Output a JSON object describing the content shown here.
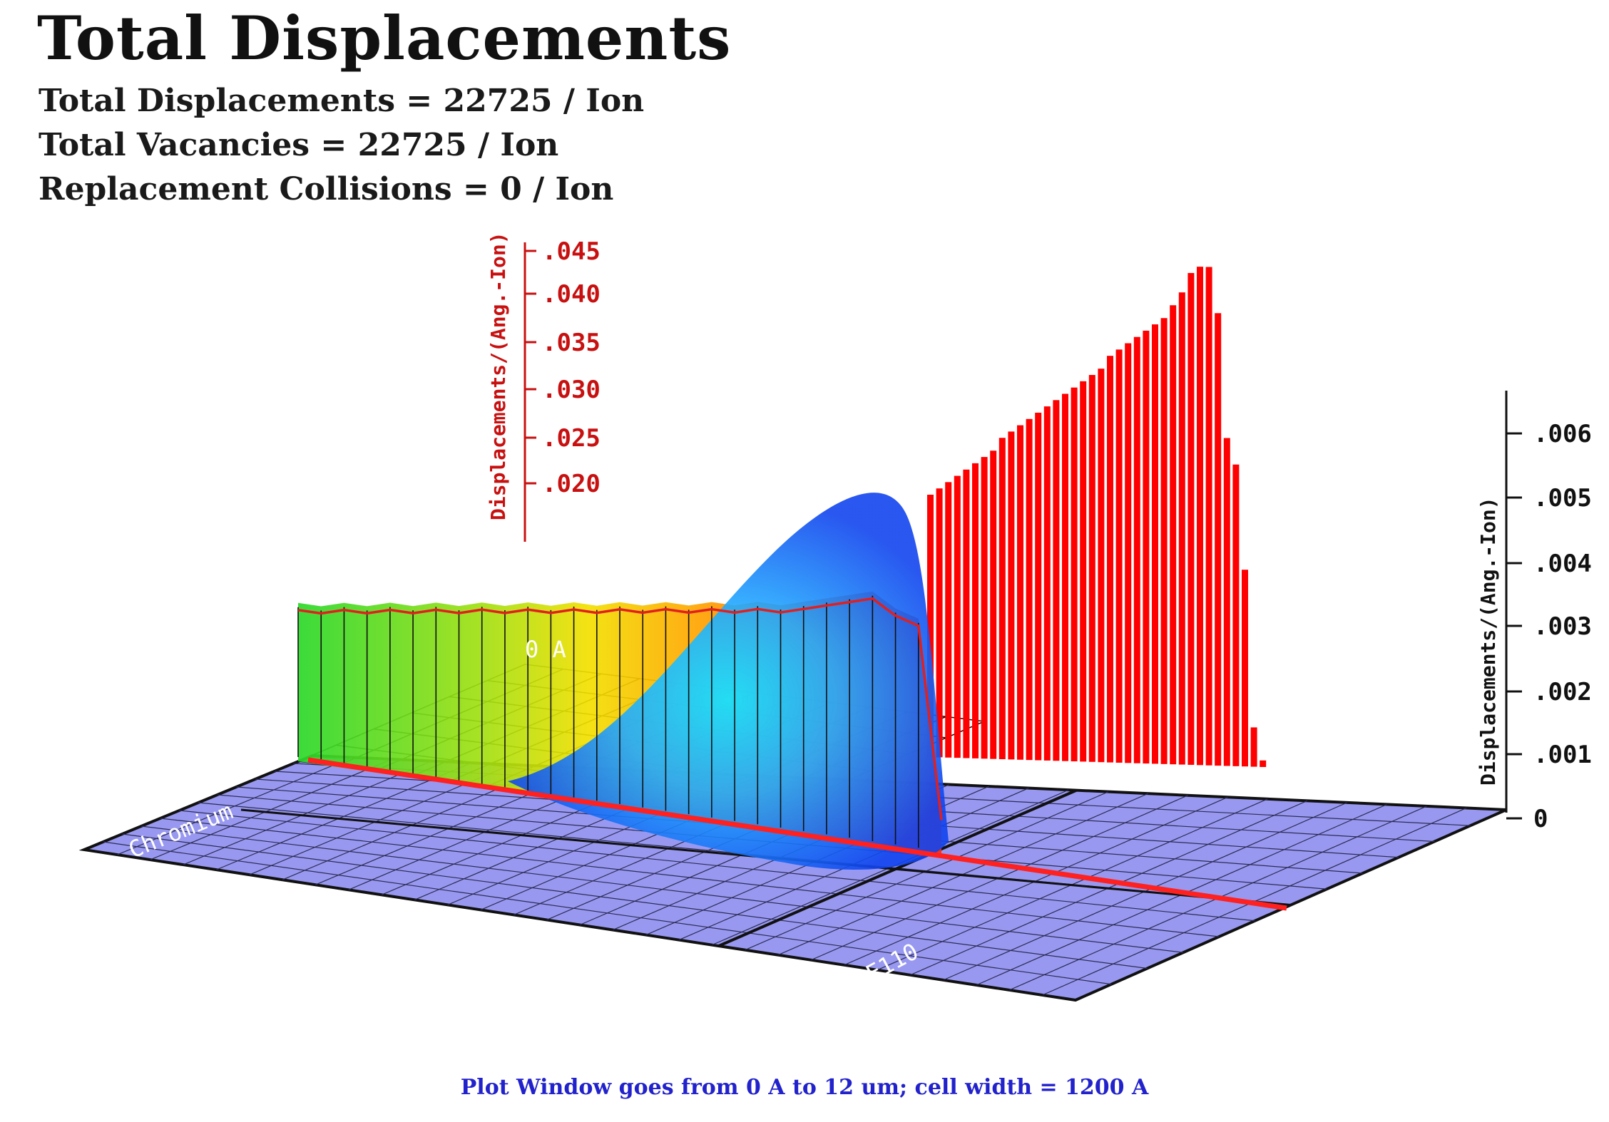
{
  "title": "Total Displacements",
  "stats": [
    "Total Displacements = 22725 / Ion",
    "Total Vacancies = 22725 / Ion",
    "Replacement Collisions = 0 / Ion"
  ],
  "footer": "Plot Window goes from 0 A to 12 um;  cell width = 1200 A",
  "colors": {
    "floor": "#9898f0",
    "total_bars": "#ff0000",
    "left_axis": "#c81010",
    "right_axis": "#111111",
    "footer_text": "#2222cc",
    "profile_outline": "#e02020"
  },
  "chart_data": {
    "type": "area",
    "labels": {
      "left_axis": "Displacements/(Ang.-Ion)",
      "right_axis": "Displacements/(Ang.-Ion)",
      "origin": "0 A",
      "layer_1": "Chromium",
      "layer_2": "E110"
    },
    "left_axis_ticks": [
      ".045",
      ".040",
      ".035",
      ".030",
      ".025",
      ".020"
    ],
    "right_axis_ticks": [
      "0",
      ".001",
      ".002",
      ".003",
      ".004",
      ".005",
      ".006"
    ],
    "left_ylim": [
      0,
      0.045
    ],
    "right_ylim": [
      0,
      0.006
    ],
    "total_displacement_bars": [
      0.004,
      0.0041,
      0.0042,
      0.0043,
      0.0044,
      0.0045,
      0.0046,
      0.0047,
      0.0049,
      0.005,
      0.0051,
      0.0052,
      0.0053,
      0.0054,
      0.0055,
      0.0056,
      0.0057,
      0.0058,
      0.0059,
      0.006,
      0.0062,
      0.0063,
      0.0064,
      0.0065,
      0.0066,
      0.0067,
      0.0068,
      0.007,
      0.0072,
      0.0075,
      0.0076,
      0.0076,
      0.0069,
      0.005,
      0.0046,
      0.003,
      0.0006,
      0.0001
    ],
    "depth_profile": [
      0.018,
      0.018,
      0.019,
      0.019,
      0.02,
      0.02,
      0.021,
      0.021,
      0.022,
      0.022,
      0.023,
      0.023,
      0.024,
      0.024,
      0.025,
      0.025,
      0.026,
      0.026,
      0.027,
      0.027,
      0.028,
      0.028,
      0.029,
      0.03,
      0.031,
      0.032,
      0.03,
      0.029,
      0.001
    ],
    "grid": true,
    "projection": "3d"
  }
}
